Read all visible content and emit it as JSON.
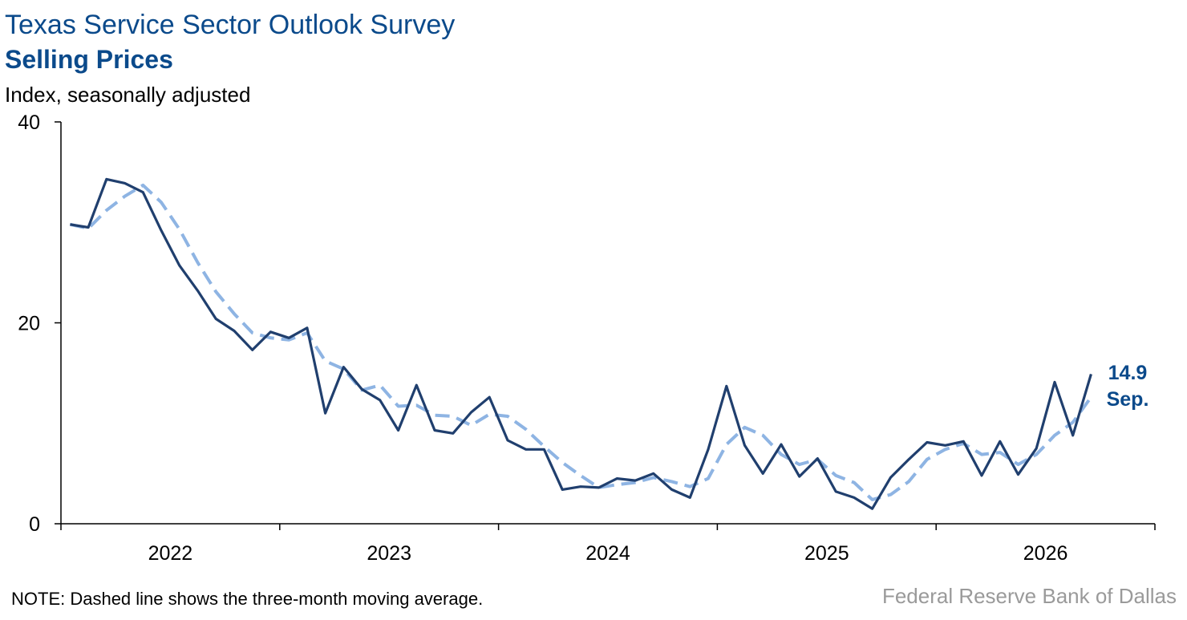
{
  "chart_data": {
    "type": "line",
    "title": "Texas Service Sector Outlook Survey",
    "subtitle": "Selling Prices",
    "y_label": "Index, seasonally adjusted",
    "note": "NOTE: Dashed line shows the three-month moving average.",
    "source": "Federal Reserve Bank of Dallas",
    "annotation": "Sep.",
    "categories": [
      null,
      null,
      null,
      null,
      null,
      null,
      null,
      null,
      null,
      null,
      null,
      null,
      null,
      null,
      null,
      null,
      null,
      null,
      null,
      null,
      null,
      null,
      null,
      null,
      null,
      null,
      null,
      null,
      null,
      null,
      null,
      null,
      null,
      null,
      null,
      null,
      null,
      null,
      null,
      null,
      null,
      null,
      null,
      null,
      null,
      null,
      null,
      null,
      null,
      null,
      null,
      null,
      null,
      null,
      null,
      null,
      null
    ],
    "year_labels": [
      "2022",
      "2023",
      "2024",
      "2025",
      "2026"
    ],
    "series": [
      {
        "name": "Selling Prices",
        "color": "#203f6e",
        "dashed": false,
        "values": [
          29.8,
          29.5,
          34.3,
          33.9,
          33.0,
          29.2,
          25.7,
          23.2,
          20.4,
          19.2,
          17.3,
          19.1,
          18.5,
          19.5,
          11.0,
          15.6,
          13.4,
          12.3,
          9.3,
          13.8,
          9.3,
          9.0,
          11.1,
          12.6,
          8.3,
          7.4,
          7.4,
          3.4,
          3.7,
          3.6,
          4.5,
          4.3,
          5.0,
          3.4,
          2.6,
          7.4,
          13.7,
          7.8,
          5.0,
          7.9,
          4.7,
          6.5,
          3.2,
          2.6,
          1.5,
          4.6,
          6.4,
          8.1,
          7.8,
          8.2,
          4.8,
          8.2,
          4.9,
          7.5,
          14.1,
          8.8,
          14.9
        ]
      },
      {
        "name": "Three-month moving average",
        "color": "#8eb4e3",
        "dashed": true,
        "values": [
          29.8,
          29.4,
          31.2,
          32.6,
          33.7,
          32.0,
          29.3,
          26.0,
          23.1,
          20.9,
          19.0,
          18.5,
          18.3,
          19.0,
          16.2,
          15.4,
          13.3,
          13.8,
          11.7,
          11.8,
          10.8,
          10.7,
          9.8,
          10.9,
          10.7,
          9.4,
          7.7,
          6.1,
          4.8,
          3.6,
          3.9,
          4.1,
          4.6,
          4.2,
          3.7,
          4.5,
          7.9,
          9.6,
          8.8,
          6.9,
          5.9,
          6.4,
          4.8,
          4.1,
          2.4,
          2.9,
          4.2,
          6.4,
          7.4,
          8.0,
          6.9,
          7.1,
          5.9,
          6.9,
          8.8,
          10.1,
          12.6
        ]
      }
    ],
    "ylim": [
      0,
      40
    ],
    "yticks": [
      0,
      20,
      40
    ],
    "grid": false
  }
}
